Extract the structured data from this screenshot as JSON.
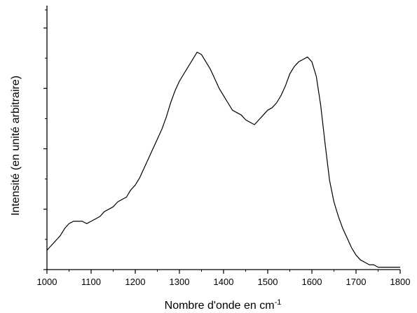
{
  "chart_data": {
    "type": "line",
    "title": "",
    "xlabel": "Nombre d'onde en cm",
    "xlabel_superscript": "-1",
    "ylabel": "Intensité (en unité arbitraire)",
    "xlim": [
      1000,
      1800
    ],
    "ylim": [
      0,
      1
    ],
    "x_ticks": [
      1000,
      1100,
      1200,
      1300,
      1400,
      1500,
      1600,
      1700,
      1800
    ],
    "y_tick_labels_shown": false,
    "grid": false,
    "legend": "none",
    "line_color": "#000000",
    "series": [
      {
        "x": [
          1000,
          1010,
          1020,
          1030,
          1040,
          1050,
          1060,
          1070,
          1080,
          1090,
          1100,
          1110,
          1120,
          1130,
          1140,
          1150,
          1160,
          1170,
          1180,
          1190,
          1200,
          1210,
          1220,
          1230,
          1240,
          1250,
          1260,
          1270,
          1280,
          1290,
          1300,
          1310,
          1320,
          1330,
          1340,
          1350,
          1360,
          1370,
          1380,
          1390,
          1400,
          1410,
          1420,
          1430,
          1440,
          1450,
          1460,
          1470,
          1480,
          1490,
          1500,
          1510,
          1520,
          1530,
          1540,
          1550,
          1560,
          1570,
          1580,
          1590,
          1600,
          1610,
          1620,
          1630,
          1640,
          1650,
          1660,
          1670,
          1680,
          1690,
          1700,
          1710,
          1720,
          1730,
          1740,
          1750,
          1760,
          1770,
          1780,
          1790,
          1800
        ],
        "y": [
          0.08,
          0.1,
          0.12,
          0.14,
          0.17,
          0.19,
          0.2,
          0.2,
          0.2,
          0.19,
          0.2,
          0.21,
          0.22,
          0.24,
          0.25,
          0.26,
          0.28,
          0.29,
          0.3,
          0.33,
          0.35,
          0.38,
          0.42,
          0.46,
          0.5,
          0.54,
          0.58,
          0.63,
          0.69,
          0.74,
          0.78,
          0.81,
          0.84,
          0.87,
          0.9,
          0.89,
          0.86,
          0.83,
          0.79,
          0.75,
          0.72,
          0.69,
          0.66,
          0.65,
          0.64,
          0.62,
          0.61,
          0.6,
          0.62,
          0.64,
          0.66,
          0.67,
          0.69,
          0.72,
          0.76,
          0.81,
          0.84,
          0.86,
          0.87,
          0.88,
          0.86,
          0.8,
          0.68,
          0.52,
          0.37,
          0.28,
          0.22,
          0.17,
          0.13,
          0.09,
          0.06,
          0.04,
          0.03,
          0.02,
          0.02,
          0.01,
          0.01,
          0.01,
          0.01,
          0.01,
          0.01
        ]
      }
    ]
  }
}
